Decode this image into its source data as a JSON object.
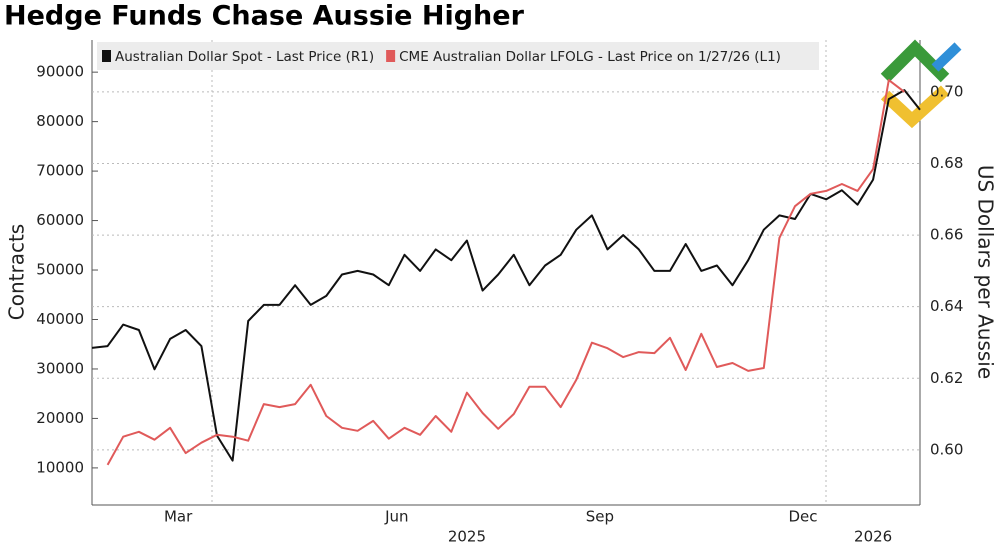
{
  "chart_data": {
    "type": "line",
    "title": "Hedge Funds Chase Aussie Higher",
    "y_label": "Contracts",
    "y2_label": "US Dollars per Aussie",
    "categories": [
      null,
      null,
      null,
      null,
      null,
      "Mar",
      null,
      null,
      null,
      null,
      null,
      null,
      null,
      null,
      null,
      null,
      null,
      null,
      null,
      "Jun",
      null,
      null,
      null,
      null,
      null,
      null,
      null,
      null,
      null,
      null,
      null,
      null,
      "Sep",
      null,
      null,
      null,
      null,
      null,
      null,
      null,
      null,
      null,
      null,
      null,
      null,
      "Dec",
      null,
      null,
      null,
      null,
      null,
      null,
      null,
      null
    ],
    "category_groups": [
      null,
      null,
      null,
      null,
      null,
      null,
      null,
      null,
      null,
      null,
      null,
      null,
      null,
      null,
      null,
      null,
      null,
      null,
      null,
      null,
      null,
      null,
      null,
      null,
      "2025",
      null,
      null,
      null,
      null,
      null,
      null,
      null,
      null,
      null,
      null,
      null,
      null,
      null,
      null,
      null,
      null,
      null,
      null,
      null,
      null,
      null,
      null,
      null,
      null,
      null,
      "2026",
      null,
      null,
      null
    ],
    "series": [
      {
        "name": "Australian Dollar Spot - Last Price (R1)",
        "color": "#111111",
        "axis": "y2",
        "values": [
          0.6285,
          0.629,
          0.635,
          0.6335,
          0.6225,
          0.631,
          0.6335,
          0.629,
          0.604,
          0.597,
          0.636,
          0.6405,
          0.6405,
          0.646,
          0.6405,
          0.643,
          0.649,
          0.65,
          0.649,
          0.646,
          0.6545,
          0.65,
          0.656,
          0.653,
          0.6585,
          0.6445,
          0.649,
          0.6545,
          0.646,
          0.6515,
          0.6545,
          0.6615,
          0.6655,
          0.656,
          0.66,
          0.656,
          0.65,
          0.65,
          0.6575,
          0.65,
          0.6515,
          0.646,
          0.653,
          0.6615,
          0.6655,
          0.6645,
          0.6715,
          0.67,
          0.6725,
          0.6685,
          0.6755,
          0.698,
          0.7005,
          0.695
        ]
      },
      {
        "name": "CME Australian Dollar LFOLG - Last Price on 1/27/26 (L1)",
        "color": "#e05a5a",
        "values": [
          null,
          10600,
          16300,
          17300,
          15700,
          18100,
          13000,
          15100,
          16700,
          16300,
          15500,
          22900,
          22300,
          22900,
          26800,
          20500,
          18100,
          17500,
          19500,
          15900,
          18100,
          16700,
          20500,
          17300,
          25200,
          21100,
          17900,
          20900,
          26400,
          26400,
          22300,
          27800,
          35300,
          34200,
          32400,
          33400,
          33200,
          36300,
          29800,
          37100,
          30400,
          31200,
          29600,
          30200,
          56500,
          62900,
          65400,
          66000,
          67400,
          66000,
          70400,
          88400,
          86000,
          null
        ]
      }
    ],
    "ylim": [
      2500,
      96500
    ],
    "yticks": [
      10000,
      20000,
      30000,
      40000,
      50000,
      60000,
      70000,
      80000,
      90000
    ],
    "y2lim": [
      0.5846,
      0.7145
    ],
    "y2ticks": [
      {
        "value": 0.6,
        "label": "0.60"
      },
      0.62,
      0.64,
      0.66,
      0.68,
      {
        "value": 0.7,
        "label": "0.70"
      }
    ],
    "grid": true
  }
}
